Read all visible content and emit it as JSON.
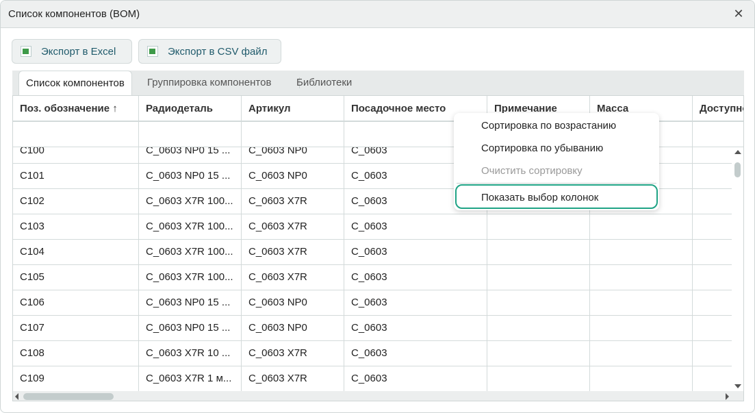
{
  "window": {
    "title": "Список компонентов (BOM)"
  },
  "toolbar": {
    "export_excel": "Экспорт в Excel",
    "export_csv": "Экспорт в CSV файл"
  },
  "tabs": [
    {
      "label": "Список компонентов",
      "active": true
    },
    {
      "label": "Группировка компонентов"
    },
    {
      "label": "Библиотеки"
    }
  ],
  "columns": [
    "Поз. обозначение ↑",
    "Радиодеталь",
    "Артикул",
    "Посадочное место",
    "Примечание",
    "Масса",
    "Доступно"
  ],
  "rows": [
    [
      "C100",
      "C_0603 NP0 15 ...",
      "C_0603 NP0",
      "C_0603"
    ],
    [
      "C101",
      "C_0603 NP0 15 ...",
      "C_0603 NP0",
      "C_0603"
    ],
    [
      "C102",
      "C_0603 X7R 100...",
      "C_0603 X7R",
      "C_0603"
    ],
    [
      "C103",
      "C_0603 X7R 100...",
      "C_0603 X7R",
      "C_0603"
    ],
    [
      "C104",
      "C_0603 X7R 100...",
      "C_0603 X7R",
      "C_0603"
    ],
    [
      "C105",
      "C_0603 X7R 100...",
      "C_0603 X7R",
      "C_0603"
    ],
    [
      "C106",
      "C_0603 NP0 15 ...",
      "C_0603 NP0",
      "C_0603"
    ],
    [
      "C107",
      "C_0603 NP0 15 ...",
      "C_0603 NP0",
      "C_0603"
    ],
    [
      "C108",
      "C_0603 X7R 10 ...",
      "C_0603 X7R",
      "C_0603"
    ],
    [
      "C109",
      "C_0603 X7R 1 м...",
      "C_0603 X7R",
      "C_0603"
    ]
  ],
  "context_menu": {
    "items": [
      {
        "label": "Сортировка по возрастанию"
      },
      {
        "label": "Сортировка по убыванию"
      },
      {
        "label": "Очистить сортировку",
        "disabled": true
      },
      {
        "label": "Показать выбор колонок",
        "highlighted": true
      }
    ]
  },
  "colors": {
    "accent": "#1fa385",
    "link": "#1f5a6b"
  }
}
